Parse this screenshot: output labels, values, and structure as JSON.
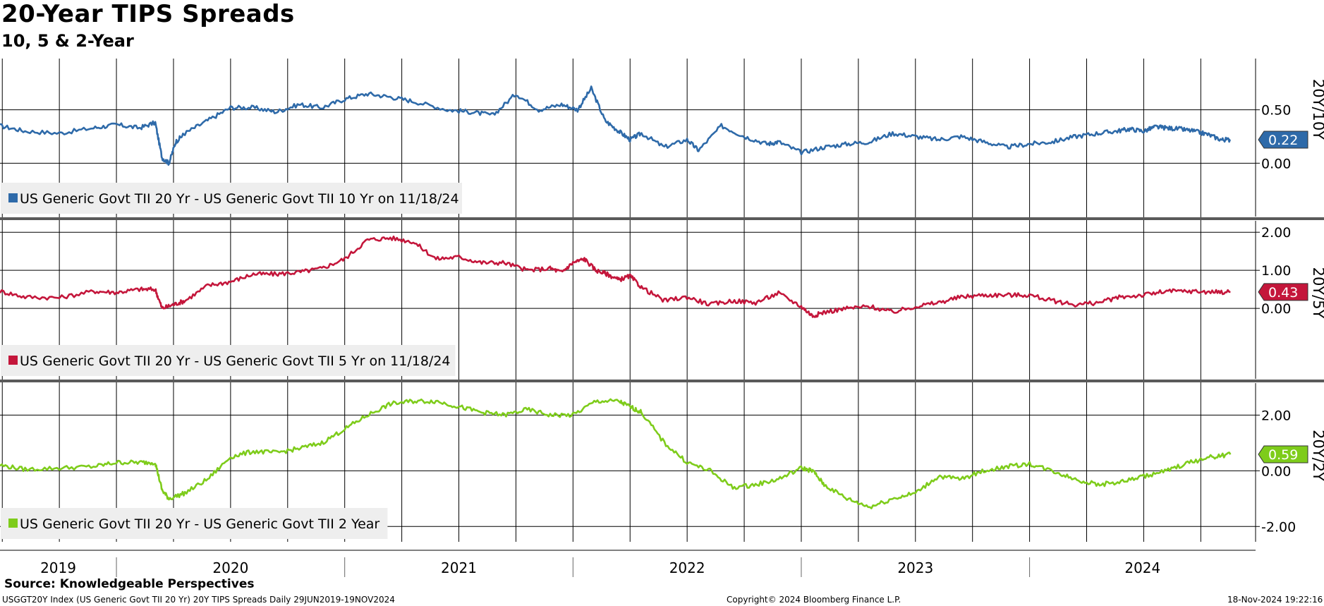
{
  "title": "20-Year TIPS Spreads",
  "subtitle": "10, 5 & 2-Year",
  "source": "Source: Knowledgeable Perspectives",
  "footer": {
    "left": "USGGT20Y Index (US Generic Govt TII 20 Yr) 20Y TIPS Spreads  Daily 29JUN2019-19NOV2024",
    "center": "Copyright© 2024 Bloomberg Finance L.P.",
    "right": "18-Nov-2024 19:22:16"
  },
  "chart_data": [
    {
      "type": "line",
      "panel_label": "20Y/10Y",
      "legend": "US Generic Govt TII 20 Yr - US Generic Govt TII 10 Yr on 11/18/24",
      "color": "#2e6aa9",
      "last_value": 0.22,
      "last_label": "0.22",
      "ylim": [
        -0.5,
        0.98
      ],
      "y_ticks": [
        0.5,
        0.0
      ],
      "y_tick_labels": [
        "0.50",
        "0.00"
      ],
      "x": [
        2019.49,
        2019.6,
        2019.75,
        2019.9,
        2020.0,
        2020.1,
        2020.17,
        2020.2,
        2020.23,
        2020.26,
        2020.3,
        2020.4,
        2020.5,
        2020.6,
        2020.7,
        2020.8,
        2020.9,
        2021.0,
        2021.1,
        2021.2,
        2021.3,
        2021.45,
        2021.55,
        2021.65,
        2021.75,
        2021.85,
        2021.95,
        2022.02,
        2022.08,
        2022.14,
        2022.2,
        2022.25,
        2022.3,
        2022.4,
        2022.5,
        2022.55,
        2022.65,
        2022.75,
        2022.85,
        2022.9,
        2023.0,
        2023.1,
        2023.2,
        2023.3,
        2023.4,
        2023.5,
        2023.6,
        2023.7,
        2023.8,
        2023.9,
        2024.0,
        2024.1,
        2024.2,
        2024.3,
        2024.38,
        2024.44,
        2024.5,
        2024.55,
        2024.6,
        2024.66,
        2024.72,
        2024.78,
        2024.84,
        2024.88
      ],
      "values": [
        0.35,
        0.3,
        0.28,
        0.33,
        0.36,
        0.33,
        0.38,
        0.05,
        0.0,
        0.2,
        0.28,
        0.4,
        0.52,
        0.52,
        0.48,
        0.55,
        0.52,
        0.6,
        0.65,
        0.62,
        0.58,
        0.5,
        0.48,
        0.45,
        0.65,
        0.5,
        0.55,
        0.5,
        0.7,
        0.4,
        0.3,
        0.22,
        0.28,
        0.15,
        0.22,
        0.12,
        0.35,
        0.25,
        0.18,
        0.2,
        0.1,
        0.15,
        0.18,
        0.2,
        0.28,
        0.25,
        0.22,
        0.25,
        0.2,
        0.15,
        0.18,
        0.2,
        0.25,
        0.28,
        0.3,
        0.32,
        0.3,
        0.34,
        0.33,
        0.32,
        0.3,
        0.27,
        0.22,
        0.22
      ]
    },
    {
      "type": "line",
      "panel_label": "20Y/5Y",
      "legend": "US Generic Govt TII 20 Yr - US Generic Govt TII 5 Yr on 11/18/24",
      "color": "#c4163b",
      "last_value": 0.43,
      "last_label": "0.43",
      "ylim": [
        -1.85,
        2.3
      ],
      "y_ticks": [
        2.0,
        1.0,
        0.0
      ],
      "y_tick_labels": [
        "2.00",
        "1.00",
        "0.00"
      ],
      "x": [
        2019.49,
        2019.6,
        2019.75,
        2019.9,
        2020.0,
        2020.1,
        2020.17,
        2020.2,
        2020.25,
        2020.3,
        2020.4,
        2020.5,
        2020.6,
        2020.7,
        2020.8,
        2020.9,
        2021.0,
        2021.1,
        2021.2,
        2021.3,
        2021.4,
        2021.5,
        2021.6,
        2021.7,
        2021.8,
        2021.9,
        2021.95,
        2022.0,
        2022.05,
        2022.1,
        2022.15,
        2022.2,
        2022.25,
        2022.3,
        2022.4,
        2022.5,
        2022.6,
        2022.7,
        2022.8,
        2022.9,
        2023.0,
        2023.05,
        2023.1,
        2023.2,
        2023.3,
        2023.4,
        2023.5,
        2023.6,
        2023.7,
        2023.8,
        2023.9,
        2024.0,
        2024.1,
        2024.2,
        2024.3,
        2024.4,
        2024.5,
        2024.6,
        2024.7,
        2024.8,
        2024.88
      ],
      "values": [
        0.45,
        0.3,
        0.28,
        0.45,
        0.42,
        0.5,
        0.5,
        0.0,
        0.1,
        0.2,
        0.6,
        0.7,
        0.9,
        0.9,
        0.95,
        1.05,
        1.3,
        1.8,
        1.85,
        1.75,
        1.3,
        1.35,
        1.2,
        1.2,
        1.0,
        1.05,
        0.95,
        1.2,
        1.3,
        1.0,
        0.9,
        0.75,
        0.85,
        0.55,
        0.2,
        0.3,
        0.1,
        0.2,
        0.15,
        0.4,
        0.05,
        -0.2,
        -0.1,
        0.0,
        0.05,
        -0.1,
        0.05,
        0.15,
        0.3,
        0.35,
        0.35,
        0.35,
        0.2,
        0.1,
        0.15,
        0.3,
        0.35,
        0.45,
        0.45,
        0.43,
        0.43
      ]
    },
    {
      "type": "line",
      "panel_label": "20Y/2Y",
      "legend": "US Generic Govt TII 20 Yr - US Generic Govt TII 2 Year",
      "color": "#7ecc1b",
      "last_value": 0.59,
      "last_label": "0.59",
      "ylim": [
        -2.55,
        3.15
      ],
      "y_ticks": [
        2.0,
        0.0,
        -2.0
      ],
      "y_tick_labels": [
        "2.00",
        "0.00",
        "-2.00"
      ],
      "x": [
        2019.49,
        2019.6,
        2019.75,
        2019.9,
        2020.0,
        2020.1,
        2020.17,
        2020.2,
        2020.23,
        2020.3,
        2020.4,
        2020.5,
        2020.6,
        2020.7,
        2020.8,
        2020.9,
        2021.0,
        2021.1,
        2021.2,
        2021.3,
        2021.4,
        2021.5,
        2021.6,
        2021.7,
        2021.8,
        2021.9,
        2022.0,
        2022.1,
        2022.2,
        2022.25,
        2022.3,
        2022.4,
        2022.5,
        2022.6,
        2022.7,
        2022.8,
        2022.9,
        2023.0,
        2023.05,
        2023.1,
        2023.2,
        2023.3,
        2023.4,
        2023.5,
        2023.6,
        2023.7,
        2023.8,
        2023.9,
        2024.0,
        2024.1,
        2024.2,
        2024.3,
        2024.4,
        2024.5,
        2024.6,
        2024.7,
        2024.8,
        2024.88
      ],
      "values": [
        0.2,
        0.05,
        0.1,
        0.15,
        0.3,
        0.3,
        0.3,
        -0.7,
        -1.0,
        -0.8,
        -0.3,
        0.5,
        0.7,
        0.65,
        0.8,
        1.0,
        1.5,
        2.0,
        2.4,
        2.5,
        2.5,
        2.3,
        2.1,
        2.0,
        2.2,
        2.0,
        2.0,
        2.5,
        2.5,
        2.3,
        2.1,
        1.0,
        0.3,
        0.0,
        -0.6,
        -0.5,
        -0.3,
        0.1,
        0.0,
        -0.5,
        -1.0,
        -1.3,
        -1.0,
        -0.8,
        -0.2,
        -0.3,
        0.0,
        0.15,
        0.25,
        0.0,
        -0.3,
        -0.5,
        -0.4,
        -0.2,
        0.0,
        0.3,
        0.5,
        0.59
      ]
    }
  ],
  "x_axis": {
    "years": [
      "2019",
      "2020",
      "2021",
      "2022",
      "2023",
      "2024"
    ],
    "range": [
      2019.49,
      2024.99
    ],
    "grid_quarters": [
      2019.5,
      2019.75,
      2020.0,
      2020.25,
      2020.5,
      2020.75,
      2021.0,
      2021.25,
      2021.5,
      2021.75,
      2022.0,
      2022.25,
      2022.5,
      2022.75,
      2023.0,
      2023.25,
      2023.5,
      2023.75,
      2024.0,
      2024.25,
      2024.5,
      2024.75
    ]
  },
  "colors": {
    "grid": "#000000",
    "legend_bg": "#eeeeee",
    "separator": "#5a5a5a"
  }
}
